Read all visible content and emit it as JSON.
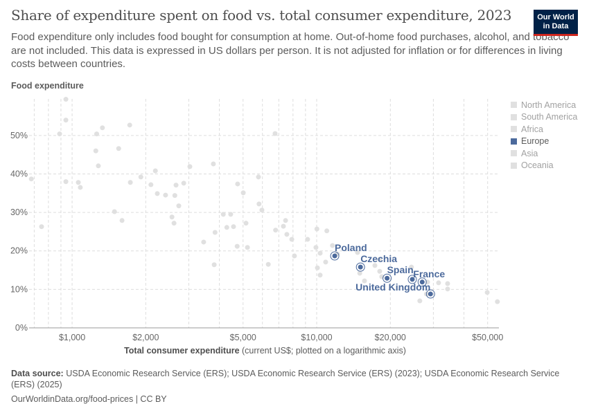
{
  "header": {
    "title": "Share of expenditure spent on food vs. total consumer expenditure, 2023",
    "subtitle": "Food expenditure only includes food bought for consumption at home. Out-of-home food purchases, alcohol, and tobacco are not included. This data is expressed in US dollars per person. It is not adjusted for inflation or for differences in living costs between countries.",
    "logo": "Our World in Data"
  },
  "legend": {
    "items": [
      {
        "label": "North America",
        "active": false
      },
      {
        "label": "South America",
        "active": false
      },
      {
        "label": "Africa",
        "active": false
      },
      {
        "label": "Europe",
        "active": true
      },
      {
        "label": "Asia",
        "active": false
      },
      {
        "label": "Oceania",
        "active": false
      }
    ]
  },
  "footer": {
    "source_label": "Data source:",
    "source_text": "USDA Economic Research Service (ERS); USDA Economic Research Service (ERS) (2023); USDA Economic Research Service (ERS) (2025)",
    "url": "OurWorldinData.org/food-prices | CC BY"
  },
  "chart_data": {
    "type": "scatter",
    "title": "Share of expenditure spent on food vs. total consumer expenditure, 2023",
    "ylabel": "Food expenditure",
    "xlabel": "Total consumer expenditure",
    "xlabel_note": "(current US$; plotted on a logarithmic axis)",
    "xscale": "log",
    "xlim": [
      667,
      55600
    ],
    "ylim": [
      0,
      59.5
    ],
    "x_ticks": [
      {
        "value": 1000,
        "label": "$1,000"
      },
      {
        "value": 2000,
        "label": "$2,000"
      },
      {
        "value": 5000,
        "label": "$5,000"
      },
      {
        "value": 10000,
        "label": "$10,000"
      },
      {
        "value": 20000,
        "label": "$20,000"
      },
      {
        "value": 50000,
        "label": "$50,000"
      }
    ],
    "y_ticks": [
      {
        "value": 0,
        "label": "0%"
      },
      {
        "value": 10,
        "label": "10%"
      },
      {
        "value": 20,
        "label": "20%"
      },
      {
        "value": 30,
        "label": "30%"
      },
      {
        "value": 40,
        "label": "40%"
      },
      {
        "value": 50,
        "label": "50%"
      }
    ],
    "grid": true,
    "legend_position": "right",
    "colors": {
      "other": "#e0e0e0",
      "europe": "#4c6a9c"
    },
    "other_points": [
      [
        681,
        38.7
      ],
      [
        750,
        26.3
      ],
      [
        889,
        50.4
      ],
      [
        943,
        59.4
      ],
      [
        943,
        54.0
      ],
      [
        943,
        38.0
      ],
      [
        1060,
        37.8
      ],
      [
        1080,
        36.5
      ],
      [
        1260,
        50.4
      ],
      [
        1250,
        46.0
      ],
      [
        1330,
        52.0
      ],
      [
        1280,
        42.1
      ],
      [
        1490,
        30.2
      ],
      [
        1550,
        46.6
      ],
      [
        1600,
        27.9
      ],
      [
        1720,
        52.7
      ],
      [
        1730,
        37.8
      ],
      [
        1910,
        39.2
      ],
      [
        2100,
        37.2
      ],
      [
        2190,
        40.8
      ],
      [
        2230,
        34.9
      ],
      [
        2410,
        34.5
      ],
      [
        2630,
        34.4
      ],
      [
        2560,
        28.8
      ],
      [
        2610,
        27.2
      ],
      [
        2660,
        37.1
      ],
      [
        2730,
        31.7
      ],
      [
        2860,
        37.6
      ],
      [
        3030,
        41.9
      ],
      [
        3450,
        22.3
      ],
      [
        3810,
        16.4
      ],
      [
        3780,
        42.6
      ],
      [
        3840,
        24.8
      ],
      [
        4150,
        29.5
      ],
      [
        4290,
        26.1
      ],
      [
        4450,
        29.5
      ],
      [
        4570,
        26.3
      ],
      [
        4750,
        37.4
      ],
      [
        4730,
        21.2
      ],
      [
        5010,
        35.1
      ],
      [
        5140,
        27.2
      ],
      [
        5210,
        20.9
      ],
      [
        5780,
        39.2
      ],
      [
        5810,
        32.2
      ],
      [
        5970,
        30.6
      ],
      [
        6340,
        16.5
      ],
      [
        6760,
        50.5
      ],
      [
        6790,
        25.4
      ],
      [
        7310,
        26.4
      ],
      [
        7460,
        27.9
      ],
      [
        7550,
        24.3
      ],
      [
        7910,
        23.0
      ],
      [
        8110,
        18.7
      ],
      [
        9180,
        23.0
      ],
      [
        9930,
        20.9
      ],
      [
        10020,
        25.7
      ],
      [
        10070,
        15.6
      ],
      [
        10330,
        19.4
      ],
      [
        10330,
        13.7
      ],
      [
        11000,
        25.2
      ],
      [
        10880,
        17.1
      ],
      [
        11600,
        21.4
      ],
      [
        12160,
        19.2
      ],
      [
        14690,
        19.6
      ],
      [
        15000,
        14.2
      ],
      [
        15680,
        12.2
      ],
      [
        17300,
        16.2
      ],
      [
        18100,
        17.8
      ],
      [
        18100,
        14.7
      ],
      [
        18450,
        13.3
      ],
      [
        24400,
        15.8
      ],
      [
        34300,
        11.5
      ],
      [
        34300,
        10.1
      ],
      [
        26400,
        7.0
      ],
      [
        31500,
        11.7
      ],
      [
        49800,
        9.2
      ],
      [
        54800,
        6.8
      ],
      [
        28400,
        11.9
      ],
      [
        28100,
        8.8
      ]
    ],
    "europe_points": [
      {
        "label": "Poland",
        "x": 11850,
        "y": 18.7
      },
      {
        "label": "Czechia",
        "x": 15100,
        "y": 15.8
      },
      {
        "label": "Spain",
        "x": 19400,
        "y": 12.9
      },
      {
        "label": "",
        "x": 24600,
        "y": 12.6
      },
      {
        "label": "France",
        "x": 27000,
        "y": 11.9
      },
      {
        "label": "United Kingdom",
        "x": 29200,
        "y": 8.8
      }
    ]
  }
}
